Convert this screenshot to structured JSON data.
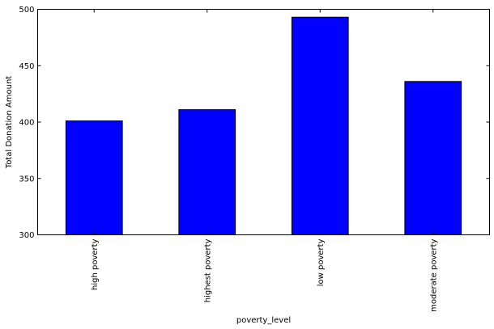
{
  "chart_data": {
    "type": "bar",
    "categories": [
      "high poverty",
      "highest poverty",
      "low poverty",
      "moderate poverty"
    ],
    "values": [
      401,
      411,
      493,
      436
    ],
    "xlabel": "poverty_level",
    "ylabel": "Total Donation Amount",
    "ylim": [
      300,
      500
    ],
    "yticks": [
      300,
      350,
      400,
      450,
      500
    ],
    "grid": false,
    "legend": "none",
    "bar_color": "#0000ff",
    "edge_color": "#000000"
  }
}
